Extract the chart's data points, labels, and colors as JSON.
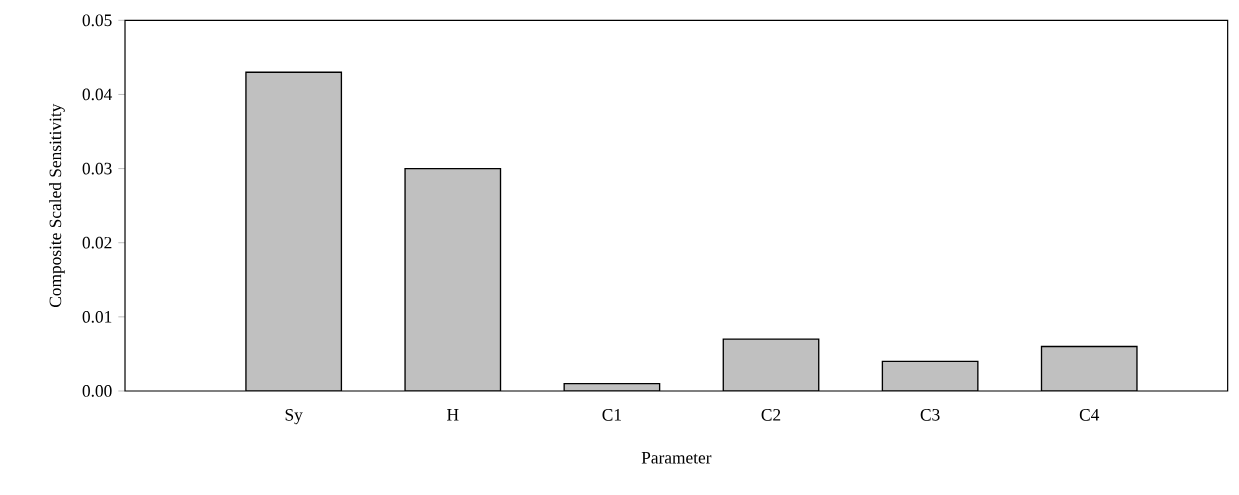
{
  "chart_data": {
    "type": "bar",
    "xlabel": "Parameter",
    "ylabel": "Composite Scaled Sensitivity",
    "categories": [
      "Sy",
      "H",
      "C1",
      "C2",
      "C3",
      "C4"
    ],
    "values": [
      0.043,
      0.03,
      0.001,
      0.007,
      0.004,
      0.006
    ],
    "color": "#c0c0c0",
    "ylim": [
      0,
      0.05
    ],
    "yticks": [
      {
        "value": 0,
        "label": "0.00"
      },
      {
        "value": 0.01,
        "label": "0.01"
      },
      {
        "value": 0.02,
        "label": "0.02"
      },
      {
        "value": 0.03,
        "label": "0.03"
      },
      {
        "value": 0.04,
        "label": "0.04"
      },
      {
        "value": 0.05,
        "label": "0.05"
      }
    ],
    "grid": false
  }
}
